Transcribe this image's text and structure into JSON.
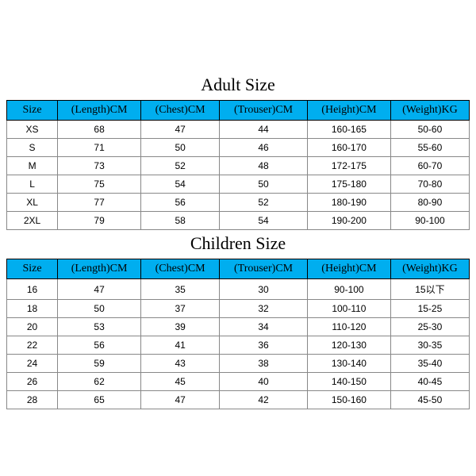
{
  "colors": {
    "header_bg": "#00aeef",
    "header_text": "#000000",
    "header_border": "#000000",
    "cell_border": "#888888",
    "cell_text": "#000000",
    "page_bg": "#ffffff",
    "title_color": "#000000"
  },
  "typography": {
    "title_font": "Times New Roman, serif",
    "title_size_pt": 16,
    "header_font": "Times New Roman, serif",
    "header_size_pt": 11,
    "body_font": "Arial, sans-serif",
    "body_size_pt": 9
  },
  "adult": {
    "title": "Adult Size",
    "type": "table",
    "columns": [
      "Size",
      "(Length)CM",
      "(Chest)CM",
      "(Trouser)CM",
      "(Height)CM",
      "(Weight)KG"
    ],
    "rows": [
      [
        "XS",
        "68",
        "47",
        "44",
        "160-165",
        "50-60"
      ],
      [
        "S",
        "71",
        "50",
        "46",
        "160-170",
        "55-60"
      ],
      [
        "M",
        "73",
        "52",
        "48",
        "172-175",
        "60-70"
      ],
      [
        "L",
        "75",
        "54",
        "50",
        "175-180",
        "70-80"
      ],
      [
        "XL",
        "77",
        "56",
        "52",
        "180-190",
        "80-90"
      ],
      [
        "2XL",
        "79",
        "58",
        "54",
        "190-200",
        "90-100"
      ]
    ]
  },
  "children": {
    "title": "Children Size",
    "type": "table",
    "columns": [
      "Size",
      "(Length)CM",
      "(Chest)CM",
      "(Trouser)CM",
      "(Height)CM",
      "(Weight)KG"
    ],
    "rows": [
      [
        "16",
        "47",
        "35",
        "30",
        "90-100",
        "15以下"
      ],
      [
        "18",
        "50",
        "37",
        "32",
        "100-110",
        "15-25"
      ],
      [
        "20",
        "53",
        "39",
        "34",
        "110-120",
        "25-30"
      ],
      [
        "22",
        "56",
        "41",
        "36",
        "120-130",
        "30-35"
      ],
      [
        "24",
        "59",
        "43",
        "38",
        "130-140",
        "35-40"
      ],
      [
        "26",
        "62",
        "45",
        "40",
        "140-150",
        "40-45"
      ],
      [
        "28",
        "65",
        "47",
        "42",
        "150-160",
        "45-50"
      ]
    ]
  }
}
